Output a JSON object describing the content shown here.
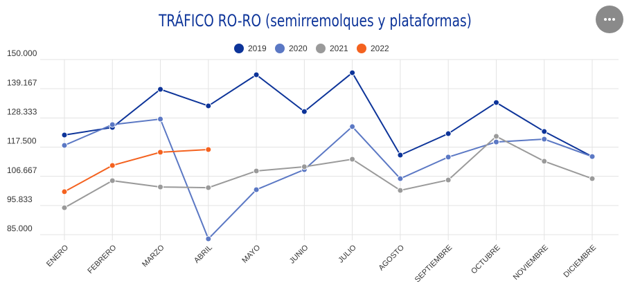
{
  "chart_data": {
    "type": "line",
    "title": "TRÁFICO RO-RO (semirremolques y plataformas)",
    "categories": [
      "ENERO",
      "FEBRERO",
      "MARZO",
      "ABRIL",
      "MAYO",
      "JUNIO",
      "JULIO",
      "AGOSTO",
      "SEPTIEMBRE",
      "OCTUBRE",
      "NOVIEMBRE",
      "DICIEMBRE"
    ],
    "series": [
      {
        "name": "2019",
        "color": "#0d3499",
        "values": [
          122000,
          124800,
          138950,
          132800,
          144350,
          130700,
          145100,
          114550,
          122500,
          134050,
          123300,
          114000
        ]
      },
      {
        "name": "2020",
        "color": "#5b78c4",
        "values": [
          118150,
          125850,
          127900,
          83450,
          101700,
          109150,
          125100,
          105800,
          113800,
          119400,
          120450,
          114000
        ]
      },
      {
        "name": "2021",
        "color": "#9a9a9a",
        "values": [
          95000,
          105050,
          102700,
          102450,
          108650,
          110200,
          113000,
          101450,
          105300,
          121500,
          112250,
          105800
        ]
      },
      {
        "name": "2022",
        "color": "#f4621f",
        "values": [
          100950,
          110700,
          115600,
          116600,
          null,
          null,
          null,
          null,
          null,
          null,
          null,
          null
        ]
      }
    ],
    "ylim": [
      85000,
      150000
    ],
    "yticks": [
      {
        "value": 85000,
        "label": "85.000"
      },
      {
        "value": 95833,
        "label": "95.833"
      },
      {
        "value": 106667,
        "label": "106.667"
      },
      {
        "value": 117500,
        "label": "117.500"
      },
      {
        "value": 128333,
        "label": "128.333"
      },
      {
        "value": 139167,
        "label": "139.167"
      },
      {
        "value": 150000,
        "label": "150.000"
      }
    ],
    "grid": true,
    "legend": "top"
  }
}
